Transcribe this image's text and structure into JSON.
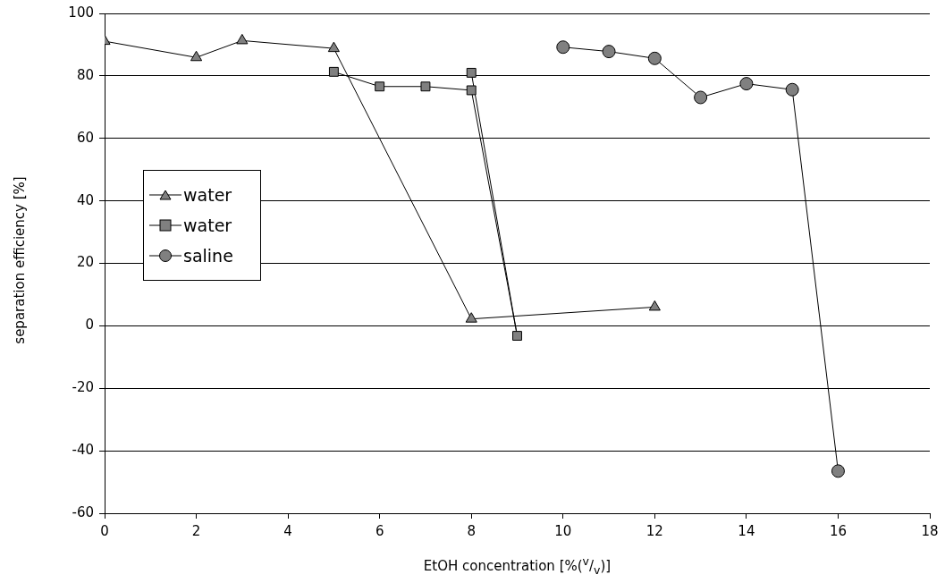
{
  "chart_data": {
    "type": "line",
    "xlabel": "EtOH concentration [%($^{v}$/$_{v}$)]",
    "ylabel": "separation efficiency [%]",
    "xlim": [
      0,
      18
    ],
    "xticks": [
      0,
      2,
      4,
      6,
      8,
      10,
      12,
      14,
      16,
      18
    ],
    "ylim": [
      -60,
      100
    ],
    "yticks": [
      -60,
      -40,
      -20,
      0,
      20,
      40,
      60,
      80,
      100
    ],
    "grid": "y",
    "legend": "left",
    "line_style": "solid",
    "series": [
      {
        "name": "water",
        "color": "#808080",
        "marker": "triangle",
        "x": [
          0,
          2,
          3,
          5,
          8,
          12
        ],
        "values": [
          91.1,
          85.9,
          91.3,
          88.8,
          2.2,
          6
        ]
      },
      {
        "name": "water",
        "color": "#808080",
        "marker": "square",
        "x": [
          5,
          6,
          7,
          8,
          9,
          8
        ],
        "values": [
          81.3,
          76.6,
          76.6,
          75.4,
          -3.2,
          81
        ]
      },
      {
        "name": "saline",
        "color": "#808080",
        "marker": "circle",
        "x": [
          10,
          11,
          12,
          13,
          14,
          15,
          16
        ],
        "values": [
          89.2,
          87.8,
          85.6,
          73.1,
          77.5,
          75.6,
          -46.5
        ]
      }
    ]
  }
}
